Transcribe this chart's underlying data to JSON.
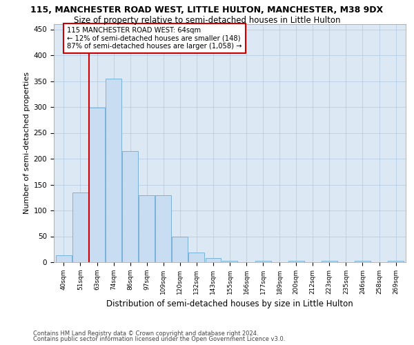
{
  "title1": "115, MANCHESTER ROAD WEST, LITTLE HULTON, MANCHESTER, M38 9DX",
  "title2": "Size of property relative to semi-detached houses in Little Hulton",
  "xlabel": "Distribution of semi-detached houses by size in Little Hulton",
  "ylabel": "Number of semi-detached properties",
  "footer1": "Contains HM Land Registry data © Crown copyright and database right 2024.",
  "footer2": "Contains public sector information licensed under the Open Government Licence v3.0.",
  "categories": [
    "40sqm",
    "51sqm",
    "63sqm",
    "74sqm",
    "86sqm",
    "97sqm",
    "109sqm",
    "120sqm",
    "132sqm",
    "143sqm",
    "155sqm",
    "166sqm",
    "177sqm",
    "189sqm",
    "200sqm",
    "212sqm",
    "223sqm",
    "235sqm",
    "246sqm",
    "258sqm",
    "269sqm"
  ],
  "values": [
    13,
    135,
    299,
    355,
    215,
    130,
    130,
    50,
    19,
    8,
    3,
    0,
    3,
    0,
    3,
    0,
    3,
    0,
    3,
    0,
    3
  ],
  "bar_color": "#c9ddf2",
  "bar_edge_color": "#6aaad4",
  "vline_x_index": 2,
  "vline_color": "#cc0000",
  "annotation_line1": "115 MANCHESTER ROAD WEST: 64sqm",
  "annotation_line2": "← 12% of semi-detached houses are smaller (148)",
  "annotation_line3": "87% of semi-detached houses are larger (1,058) →",
  "annotation_box_color": "#ffffff",
  "annotation_box_edge": "#cc0000",
  "ylim": [
    0,
    460
  ],
  "yticks": [
    0,
    50,
    100,
    150,
    200,
    250,
    300,
    350,
    400,
    450
  ],
  "bg_color": "#ffffff",
  "plot_bg_color": "#dce9f5",
  "grid_color": "#b0c8e0",
  "title1_fontsize": 9,
  "title2_fontsize": 8.5,
  "xlabel_fontsize": 8.5,
  "ylabel_fontsize": 8
}
